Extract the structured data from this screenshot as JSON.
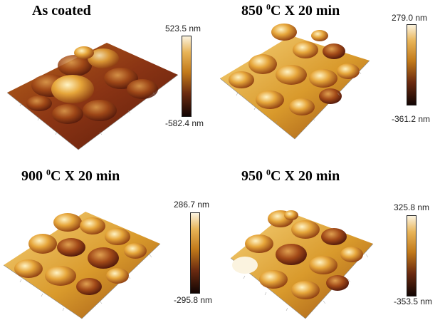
{
  "panels": [
    {
      "title_pre": "As coated",
      "title_sup": "",
      "title_post": "",
      "scale_max": "523.5 nm",
      "scale_min": "-582.4 nm"
    },
    {
      "title_pre": "850 ",
      "title_sup": "0",
      "title_post": "C X 20 min",
      "scale_max": "279.0 nm",
      "scale_min": "-361.2 nm"
    },
    {
      "title_pre": "900 ",
      "title_sup": "0",
      "title_post": "C X 20 min",
      "scale_max": "286.7 nm",
      "scale_min": "-295.8 nm"
    },
    {
      "title_pre": "950 ",
      "title_sup": "0",
      "title_post": "C X 20 min",
      "scale_max": "325.8 nm",
      "scale_min": "-353.5 nm"
    }
  ],
  "colors": {
    "high": "#fbf3df",
    "mid": "#c27a1a",
    "low": "#120503"
  }
}
